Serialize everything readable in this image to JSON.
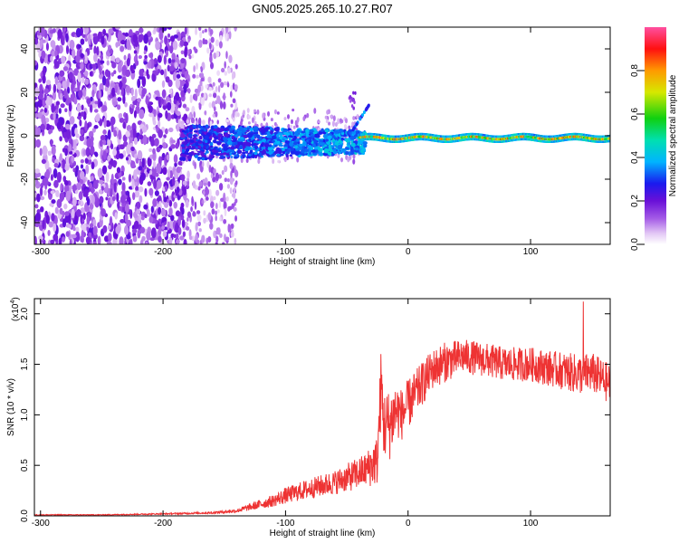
{
  "title": "GN05.2025.265.10.27.R07",
  "colors": {
    "snr_line": "#ee3333",
    "frame": "#000000",
    "background": "#ffffff"
  },
  "chart_data": [
    {
      "type": "heatmap",
      "xlabel": "Height of straight line (km)",
      "ylabel": "Frequency (Hz)",
      "xlim": [
        -305,
        165
      ],
      "ylim": [
        -50,
        50
      ],
      "xticks": [
        -300,
        -200,
        -100,
        0,
        100
      ],
      "yticks": [
        -40,
        -20,
        0,
        20,
        40
      ],
      "colorbar": {
        "label": "Normalized spectral amplitude",
        "range": [
          0,
          1
        ],
        "ticks": [
          0.0,
          0.2,
          0.4,
          0.6,
          0.8
        ],
        "colormap": "rainbow: white, violet, purple, blue, cyan, green, yellow, orange, red, pink"
      },
      "features": [
        {
          "region": "x -305 to -180 km",
          "description": "broadband noise spanning full frequency range",
          "amplitude": [
            0.1,
            0.25
          ]
        },
        {
          "region": "x -180 to -140 km",
          "description": "sparser broadband noise",
          "amplitude": [
            0.05,
            0.15
          ]
        },
        {
          "region": "x -180 to -40 km",
          "description": "signal band near 0 Hz, widening toward -10 to 5 Hz",
          "amplitude": [
            0.2,
            0.4
          ]
        },
        {
          "region": "x -40 to 165 km",
          "description": "narrow strong line at about 0 Hz",
          "amplitude": [
            0.4,
            1.0
          ]
        }
      ]
    },
    {
      "type": "line",
      "xlabel": "Height of straight line (km)",
      "ylabel": "SNR (10 * v/v)",
      "yscale_label": "(x10",
      "yscale_exponent": "4",
      "xlim": [
        -305,
        165
      ],
      "ylim": [
        0,
        2.15
      ],
      "xticks": [
        -300,
        -200,
        -100,
        0,
        100
      ],
      "yticks": [
        "0.0",
        "0.5",
        "1.0",
        "1.5",
        "2.0"
      ],
      "series": [
        {
          "x": [
            -305,
            -250,
            -200,
            -160,
            -140,
            -125,
            -110,
            -100,
            -80,
            -60,
            -45,
            -35,
            -25,
            -22,
            -20,
            -15,
            -10,
            -5,
            0,
            10,
            20,
            30,
            45,
            60,
            80,
            100,
            120,
            140,
            150,
            165
          ],
          "y": [
            0.01,
            0.01,
            0.02,
            0.03,
            0.05,
            0.1,
            0.15,
            0.2,
            0.27,
            0.33,
            0.4,
            0.45,
            0.55,
            1.3,
            0.9,
            0.9,
            1.05,
            1.0,
            1.1,
            1.28,
            1.45,
            1.52,
            1.58,
            1.55,
            1.5,
            1.5,
            1.45,
            1.4,
            1.42,
            1.3
          ],
          "spread": [
            0.004,
            0.004,
            0.006,
            0.01,
            0.02,
            0.04,
            0.06,
            0.08,
            0.1,
            0.12,
            0.15,
            0.17,
            0.25,
            0.4,
            0.35,
            0.35,
            0.3,
            0.25,
            0.25,
            0.22,
            0.2,
            0.2,
            0.17,
            0.17,
            0.17,
            0.17,
            0.18,
            0.2,
            0.2,
            0.2
          ],
          "peak": {
            "x": 143,
            "y": 2.12
          }
        }
      ]
    }
  ]
}
